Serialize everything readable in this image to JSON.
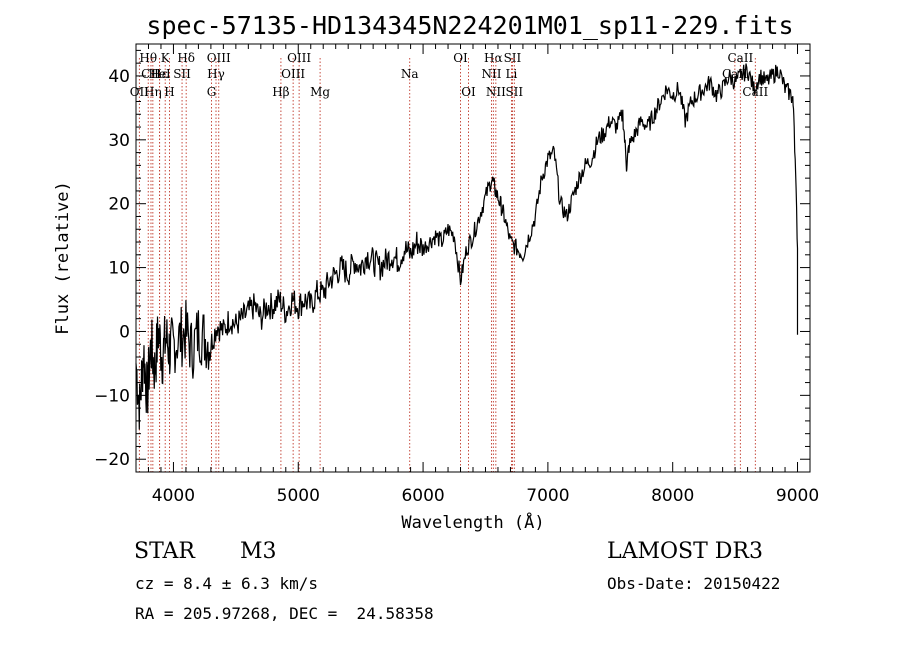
{
  "chart_data": {
    "type": "line",
    "title": "spec-57135-HD134345N224201M01_sp11-229.fits",
    "xlabel": "Wavelength (Å)",
    "ylabel": "Flux (relative)",
    "xlim": [
      3700,
      9100
    ],
    "ylim": [
      -22,
      45
    ],
    "xticks": [
      4000,
      5000,
      6000,
      7000,
      8000,
      9000
    ],
    "yticks": [
      -20,
      -10,
      0,
      10,
      20,
      30,
      40
    ],
    "series": [
      {
        "name": "flux",
        "x": [
          3700,
          3730,
          3760,
          3790,
          3820,
          3850,
          3880,
          3910,
          3940,
          3970,
          4000,
          4050,
          4100,
          4150,
          4200,
          4250,
          4300,
          4350,
          4400,
          4450,
          4500,
          4550,
          4600,
          4650,
          4700,
          4750,
          4800,
          4850,
          4900,
          4950,
          5000,
          5050,
          5100,
          5150,
          5200,
          5250,
          5300,
          5350,
          5400,
          5450,
          5500,
          5550,
          5600,
          5650,
          5700,
          5750,
          5800,
          5850,
          5900,
          5950,
          6000,
          6050,
          6100,
          6150,
          6200,
          6250,
          6300,
          6350,
          6400,
          6450,
          6500,
          6550,
          6580,
          6620,
          6650,
          6700,
          6750,
          6800,
          6850,
          6900,
          6950,
          7000,
          7050,
          7100,
          7150,
          7200,
          7250,
          7300,
          7350,
          7400,
          7450,
          7500,
          7550,
          7600,
          7630,
          7650,
          7700,
          7750,
          7800,
          7850,
          7900,
          7950,
          8000,
          8050,
          8100,
          8150,
          8200,
          8250,
          8300,
          8350,
          8400,
          8450,
          8500,
          8550,
          8600,
          8650,
          8700,
          8750,
          8800,
          8850,
          8900,
          8950,
          8970,
          9000
        ],
        "y": [
          -5,
          -12,
          -3,
          -10,
          -2,
          -6,
          0,
          -4,
          -1,
          -3,
          -2,
          -1,
          0,
          -3,
          0,
          -1,
          -2,
          1,
          0,
          2,
          1,
          2,
          3,
          4,
          2,
          4,
          4,
          5,
          3,
          5,
          4,
          5,
          4,
          6,
          6,
          8,
          9,
          10,
          9,
          11,
          10,
          12,
          11,
          10,
          11,
          12,
          11,
          13,
          12,
          14,
          13,
          14,
          15,
          14,
          16,
          15,
          8,
          13,
          15,
          18,
          21,
          24,
          22,
          20,
          18,
          14,
          13,
          12,
          15,
          18,
          24,
          27,
          28,
          20,
          18,
          21,
          24,
          26,
          27,
          30,
          31,
          33,
          32,
          34,
          26,
          29,
          31,
          33,
          32,
          34,
          36,
          38,
          37,
          38,
          33,
          36,
          37,
          38,
          39,
          37,
          38,
          40,
          39,
          40,
          41,
          38,
          40,
          39,
          40,
          41,
          38,
          37,
          35,
          13
        ]
      }
    ],
    "lines": [
      {
        "label": "Hθ",
        "x": 3798,
        "row": 1
      },
      {
        "label": "CH",
        "x": 3820,
        "row": 2
      },
      {
        "label": "OII",
        "x": 3727,
        "row": 3
      },
      {
        "label": "Hε",
        "x": 3889,
        "row": 2
      },
      {
        "label": "Hη",
        "x": 3835,
        "row": 3
      },
      {
        "label": "K",
        "x": 3934,
        "row": 1
      },
      {
        "label": "HeI",
        "x": 3889,
        "row": 2
      },
      {
        "label": "H",
        "x": 3968,
        "row": 3
      },
      {
        "label": "SII",
        "x": 4069,
        "row": 2
      },
      {
        "label": "Hδ",
        "x": 4102,
        "row": 1
      },
      {
        "label": "OIII",
        "x": 4363,
        "row": 1
      },
      {
        "label": "Hγ",
        "x": 4341,
        "row": 2
      },
      {
        "label": "G",
        "x": 4305,
        "row": 3
      },
      {
        "label": "Hβ",
        "x": 4861,
        "row": 3
      },
      {
        "label": "OIII",
        "x": 5007,
        "row": 1
      },
      {
        "label": "OIII",
        "x": 4959,
        "row": 2
      },
      {
        "label": "Mg",
        "x": 5175,
        "row": 3
      },
      {
        "label": "Na",
        "x": 5893,
        "row": 2
      },
      {
        "label": "OI",
        "x": 6300,
        "row": 1
      },
      {
        "label": "OI",
        "x": 6364,
        "row": 3
      },
      {
        "label": "Hα",
        "x": 6563,
        "row": 1
      },
      {
        "label": "SII",
        "x": 6716,
        "row": 1
      },
      {
        "label": "NII",
        "x": 6548,
        "row": 2
      },
      {
        "label": "Li",
        "x": 6708,
        "row": 2
      },
      {
        "label": "NII",
        "x": 6583,
        "row": 3
      },
      {
        "label": "SII",
        "x": 6731,
        "row": 3
      },
      {
        "label": "CaII",
        "x": 8542,
        "row": 1
      },
      {
        "label": "CaII",
        "x": 8498,
        "row": 2
      },
      {
        "label": "CaII",
        "x": 8662,
        "row": 3
      }
    ]
  },
  "info": {
    "class_label": "STAR",
    "subclass": "M3",
    "survey": "LAMOST DR3",
    "cz": "cz = 8.4 ± 6.3 km/s",
    "obs_date": "Obs-Date: 20150422",
    "coords": "RA = 205.97268, DEC =  24.58358"
  }
}
